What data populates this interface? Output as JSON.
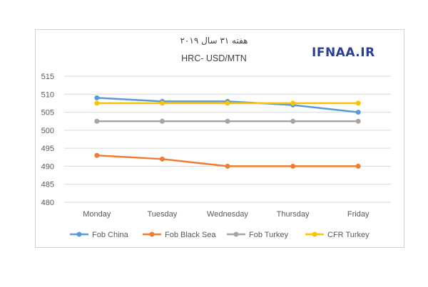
{
  "chart_data": {
    "type": "line",
    "title": "هفته ۳۱ سال ۲۰۱۹",
    "subtitle": "HRC- USD/MTN",
    "watermark": "IFNAA.IR",
    "categories": [
      "Monday",
      "Tuesday",
      "Wednesday",
      "Thursday",
      "Friday"
    ],
    "ylim": [
      480,
      515
    ],
    "yticks": [
      480,
      485,
      490,
      495,
      500,
      505,
      510,
      515
    ],
    "grid": true,
    "legend_position": "bottom",
    "series": [
      {
        "name": "Fob China",
        "color": "#5b9bd5",
        "values": [
          509,
          508,
          508,
          507,
          505
        ]
      },
      {
        "name": "Fob Black Sea",
        "color": "#ed7d31",
        "values": [
          493,
          492,
          490,
          490,
          490
        ]
      },
      {
        "name": "Fob Turkey",
        "color": "#a5a5a5",
        "values": [
          502.5,
          502.5,
          502.5,
          502.5,
          502.5
        ]
      },
      {
        "name": "CFR Turkey",
        "color": "#ffc000",
        "values": [
          507.5,
          507.5,
          507.5,
          507.5,
          507.5
        ]
      }
    ]
  }
}
